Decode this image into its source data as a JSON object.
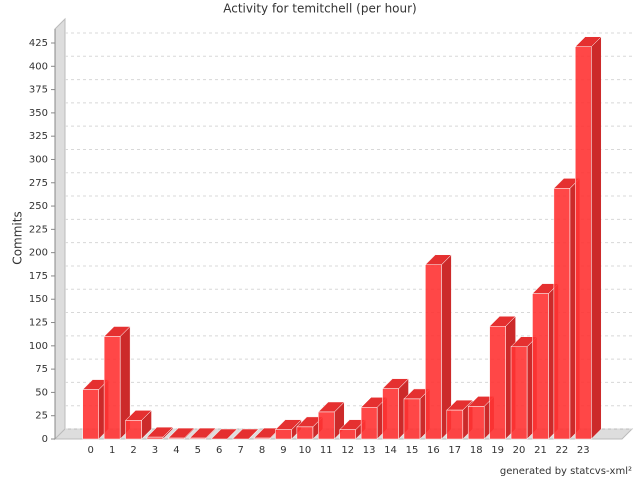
{
  "chart_data": {
    "type": "bar",
    "title": "Activity for temitchell (per hour)",
    "y_label": "Commits",
    "footer": "generated by statcvs-xml²",
    "categories": [
      "0",
      "1",
      "2",
      "3",
      "4",
      "5",
      "6",
      "7",
      "8",
      "9",
      "10",
      "11",
      "12",
      "13",
      "14",
      "15",
      "16",
      "17",
      "18",
      "19",
      "20",
      "21",
      "22",
      "23"
    ],
    "values": [
      53,
      110,
      20,
      2,
      1,
      1,
      0,
      0,
      1,
      10,
      13,
      29,
      10,
      34,
      54,
      43,
      187,
      31,
      35,
      121,
      99,
      156,
      269,
      421
    ],
    "color": "#ff3333",
    "ylim": [
      0,
      425
    ],
    "yticks": [
      0,
      25,
      50,
      75,
      100,
      125,
      150,
      175,
      200,
      225,
      250,
      275,
      300,
      325,
      350,
      375,
      400,
      425
    ],
    "grid": true
  }
}
